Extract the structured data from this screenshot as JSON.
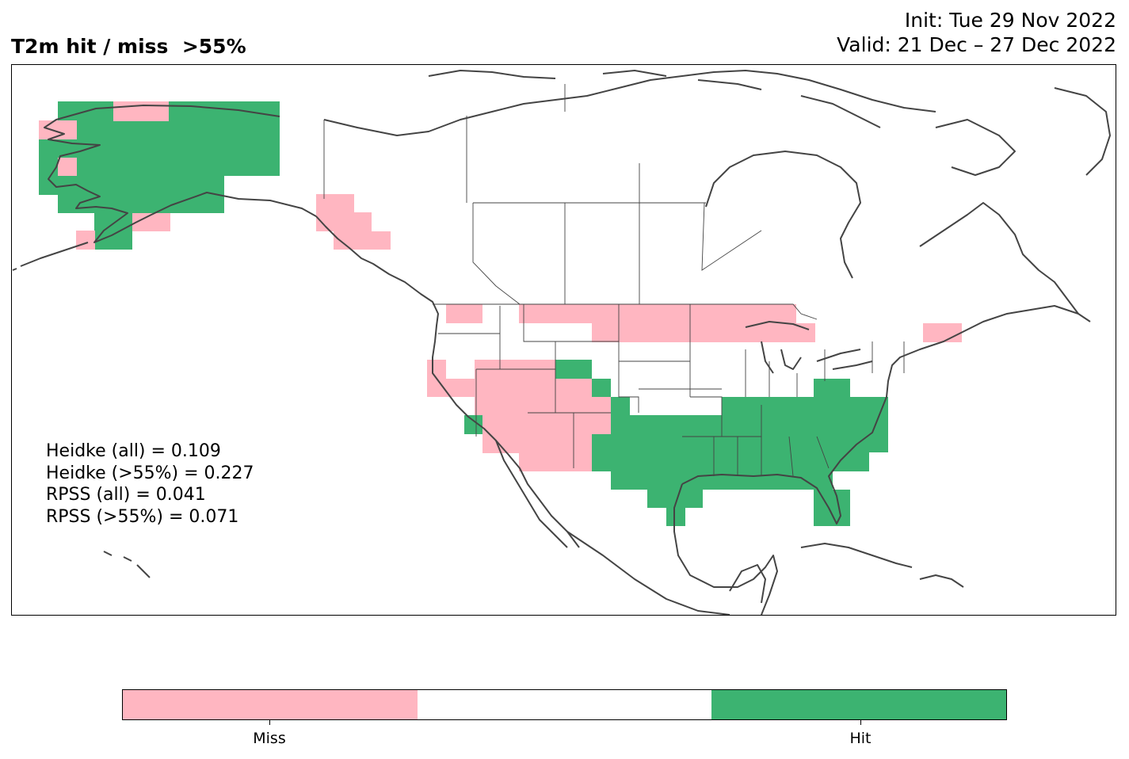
{
  "title": {
    "main": "T2m hit / miss  >55%",
    "init": "Init: Tue 29 Nov 2022",
    "valid": "Valid: 21 Dec – 27 Dec 2022"
  },
  "scores": {
    "heidke_all": "Heidke (all) = 0.109",
    "heidke_55": "Heidke (>55%) = 0.227",
    "rpss_all": "RPSS (all) = 0.041",
    "rpss_55": "RPSS (>55%) = 0.071"
  },
  "colors": {
    "miss": "#ffb6c1",
    "neutral": "#ffffff",
    "hit": "#3cb371",
    "coast": "#444444"
  },
  "legend": {
    "miss_label": "Miss",
    "hit_label": "Hit"
  }
}
